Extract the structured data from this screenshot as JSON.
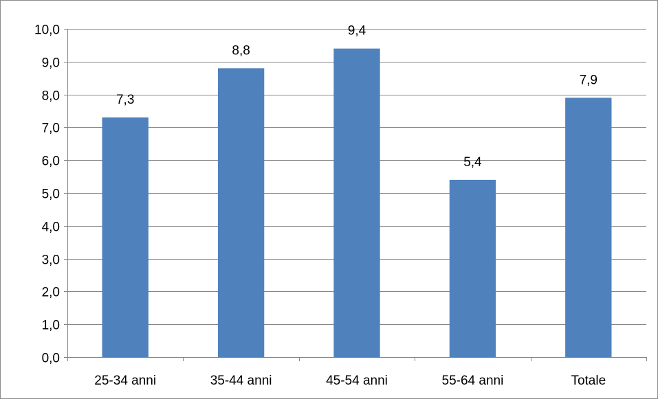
{
  "chart_data": {
    "type": "bar",
    "categories": [
      "25-34 anni",
      "35-44 anni",
      "45-54 anni",
      "55-64 anni",
      "Totale"
    ],
    "values": [
      7.3,
      8.8,
      9.4,
      5.4,
      7.9
    ],
    "data_labels": [
      "7,3",
      "8,8",
      "9,4",
      "5,4",
      "7,9"
    ],
    "title": "",
    "xlabel": "",
    "ylabel": "",
    "ylim": [
      0,
      10
    ],
    "y_ticks": [
      0,
      1,
      2,
      3,
      4,
      5,
      6,
      7,
      8,
      9,
      10
    ],
    "y_tick_labels": [
      "0,0",
      "1,0",
      "2,0",
      "3,0",
      "4,0",
      "5,0",
      "6,0",
      "7,0",
      "8,0",
      "9,0",
      "10,0"
    ],
    "grid": true,
    "legend": "none",
    "bar_color": "#4f81bd",
    "grid_color": "#868686"
  }
}
